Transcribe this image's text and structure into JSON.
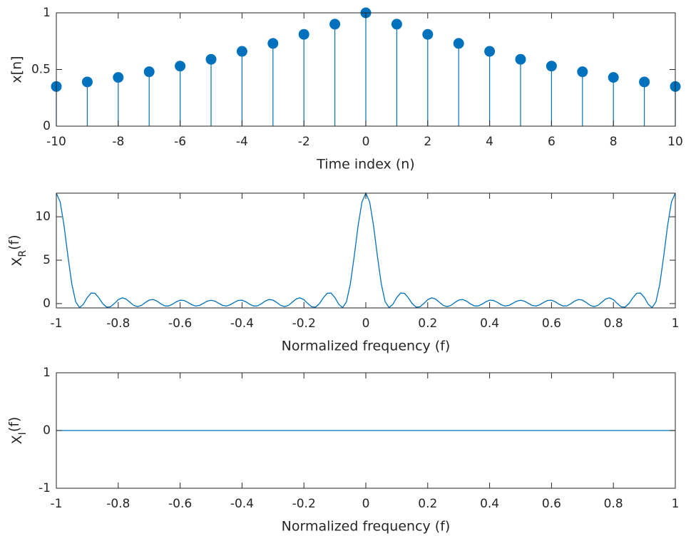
{
  "chart_data": [
    {
      "type": "stem",
      "color": "#0072bd",
      "x": [
        -10,
        -9,
        -8,
        -7,
        -6,
        -5,
        -4,
        -3,
        -2,
        -1,
        0,
        1,
        2,
        3,
        4,
        5,
        6,
        7,
        8,
        9,
        10
      ],
      "values": [
        0.35,
        0.39,
        0.43,
        0.48,
        0.53,
        0.59,
        0.66,
        0.73,
        0.81,
        0.9,
        1,
        0.9,
        0.81,
        0.73,
        0.66,
        0.59,
        0.53,
        0.48,
        0.43,
        0.39,
        0.35
      ],
      "xlim": [
        -10,
        10
      ],
      "xticks": [
        -10,
        -8,
        -6,
        -4,
        -2,
        0,
        2,
        4,
        6,
        8,
        10
      ],
      "ylim": [
        0,
        1
      ],
      "yticks": [
        0,
        0.5,
        1
      ],
      "xlabel": "Time index (n)",
      "ylabel": "x[n]"
    },
    {
      "type": "line",
      "color": "#0072bd",
      "x": [
        -1,
        -0.9875,
        -0.975,
        -0.9625,
        -0.95,
        -0.9375,
        -0.925,
        -0.9125,
        -0.9,
        -0.8875,
        -0.875,
        -0.8625,
        -0.85,
        -0.8375,
        -0.825,
        -0.8125,
        -0.8,
        -0.7875,
        -0.775,
        -0.7625,
        -0.75,
        -0.7375,
        -0.725,
        -0.7125,
        -0.7,
        -0.6875,
        -0.675,
        -0.6625,
        -0.65,
        -0.6375,
        -0.625,
        -0.6125,
        -0.6,
        -0.5875,
        -0.575,
        -0.5625,
        -0.55,
        -0.5375,
        -0.525,
        -0.5125,
        -0.5,
        -0.4875,
        -0.475,
        -0.4625,
        -0.45,
        -0.4375,
        -0.425,
        -0.4125,
        -0.4,
        -0.3875,
        -0.375,
        -0.3625,
        -0.35,
        -0.3375,
        -0.325,
        -0.3125,
        -0.3,
        -0.2875,
        -0.275,
        -0.2625,
        -0.25,
        -0.2375,
        -0.225,
        -0.2125,
        -0.2,
        -0.1875,
        -0.175,
        -0.1625,
        -0.15,
        -0.1375,
        -0.125,
        -0.1125,
        -0.1,
        -0.0875,
        -0.075,
        -0.0625,
        -0.05,
        -0.0375,
        -0.025,
        -0.0125,
        0,
        0.0125,
        0.025,
        0.0375,
        0.05,
        0.0625,
        0.075,
        0.0875,
        0.1,
        0.1125,
        0.125,
        0.1375,
        0.15,
        0.1625,
        0.175,
        0.1875,
        0.2,
        0.2125,
        0.225,
        0.2375,
        0.25,
        0.2625,
        0.275,
        0.2875,
        0.3,
        0.3125,
        0.325,
        0.3375,
        0.35,
        0.3625,
        0.375,
        0.3875,
        0.4,
        0.4125,
        0.425,
        0.4375,
        0.45,
        0.4625,
        0.475,
        0.4875,
        0.5,
        0.5125,
        0.525,
        0.5375,
        0.55,
        0.5625,
        0.575,
        0.5875,
        0.6,
        0.6125,
        0.625,
        0.6375,
        0.65,
        0.6625,
        0.675,
        0.6875,
        0.7,
        0.7125,
        0.725,
        0.7375,
        0.75,
        0.7625,
        0.775,
        0.7875,
        0.8,
        0.8125,
        0.825,
        0.8375,
        0.85,
        0.8625,
        0.875,
        0.8875,
        0.9,
        0.9125,
        0.925,
        0.9375,
        0.95,
        0.9625,
        0.975,
        0.9875,
        1
      ],
      "values": [
        12.72,
        11.7,
        8.96,
        5.45,
        2.26,
        0.21,
        -0.46,
        -0.08,
        0.7,
        1.22,
        1.18,
        0.65,
        -0.01,
        -0.41,
        -0.37,
        0.01,
        0.45,
        0.66,
        0.53,
        0.16,
        -0.21,
        -0.35,
        -0.21,
        0.12,
        0.4,
        0.47,
        0.29,
        -0.02,
        -0.26,
        -0.28,
        -0.08,
        0.2,
        0.39,
        0.36,
        0.14,
        -0.13,
        -0.28,
        -0.21,
        0.03,
        0.28,
        0.38,
        0.28,
        0.03,
        -0.21,
        -0.28,
        -0.13,
        0.14,
        0.36,
        0.39,
        0.2,
        -0.08,
        -0.28,
        -0.26,
        -0.02,
        0.29,
        0.47,
        0.4,
        0.12,
        -0.21,
        -0.35,
        -0.21,
        0.16,
        0.53,
        0.66,
        0.45,
        0.01,
        -0.37,
        -0.41,
        -0.01,
        0.65,
        1.18,
        1.22,
        0.7,
        -0.08,
        -0.46,
        0.21,
        2.26,
        5.45,
        8.96,
        11.7,
        12.72,
        11.7,
        8.96,
        5.45,
        2.26,
        0.21,
        -0.46,
        -0.08,
        0.7,
        1.22,
        1.18,
        0.65,
        -0.01,
        -0.41,
        -0.37,
        0.01,
        0.45,
        0.66,
        0.53,
        0.16,
        -0.21,
        -0.35,
        -0.21,
        0.12,
        0.4,
        0.47,
        0.29,
        -0.02,
        -0.26,
        -0.28,
        -0.08,
        0.2,
        0.39,
        0.36,
        0.14,
        -0.13,
        -0.28,
        -0.21,
        0.03,
        0.28,
        0.38,
        0.28,
        0.03,
        -0.21,
        -0.28,
        -0.13,
        0.14,
        0.36,
        0.39,
        0.2,
        -0.08,
        -0.28,
        -0.26,
        -0.02,
        0.29,
        0.47,
        0.4,
        0.12,
        -0.21,
        -0.35,
        -0.21,
        0.16,
        0.53,
        0.66,
        0.45,
        0.01,
        -0.37,
        -0.41,
        -0.01,
        0.65,
        1.18,
        1.22,
        0.7,
        -0.08,
        -0.46,
        0.21,
        2.26,
        5.45,
        8.96,
        11.7,
        12.72
      ],
      "xlim": [
        -1,
        1
      ],
      "xticks": [
        -1,
        -0.8,
        -0.6,
        -0.4,
        -0.2,
        0,
        0.2,
        0.4,
        0.6,
        0.8,
        1
      ],
      "ylim": [
        -0.5,
        12.72
      ],
      "yticks": [
        0,
        5,
        10
      ],
      "xlabel": "Normalized frequency (f)",
      "ylabel": {
        "text": "X",
        "subscript": "R",
        "suffix": "(f)"
      }
    },
    {
      "type": "line",
      "color": "#0072bd",
      "x": [
        -1,
        1
      ],
      "values": [
        0,
        0
      ],
      "xlim": [
        -1,
        1
      ],
      "xticks": [
        -1,
        -0.8,
        -0.6,
        -0.4,
        -0.2,
        0,
        0.2,
        0.4,
        0.6,
        0.8,
        1
      ],
      "ylim": [
        -1,
        1
      ],
      "yticks": [
        -1,
        0,
        1
      ],
      "xlabel": "Normalized frequency (f)",
      "ylabel": {
        "text": "X",
        "subscript": "I",
        "suffix": "(f)"
      }
    }
  ]
}
